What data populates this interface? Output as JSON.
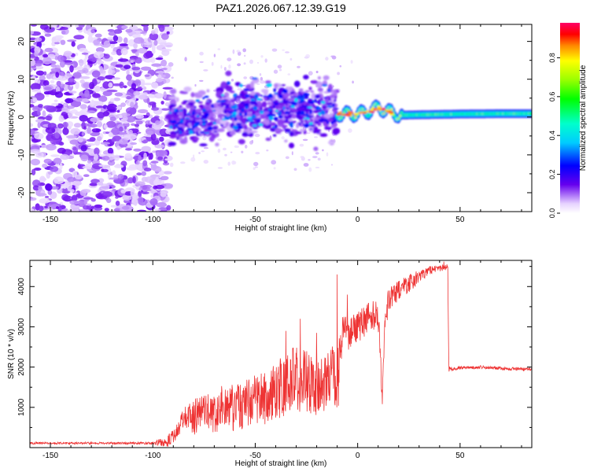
{
  "title": "PAZ1.2026.067.12.39.G19",
  "chart_data": [
    {
      "type": "heatmap",
      "xlabel": "Height of straight line (km)",
      "ylabel": "Frequency (Hz)",
      "xlim": [
        -160,
        85
      ],
      "ylim": [
        -25,
        24.5
      ],
      "x_ticks": [
        -150,
        -100,
        -50,
        0,
        50
      ],
      "x_tick_labels": [
        "-150",
        "-100",
        "-50",
        "0",
        "50"
      ],
      "y_ticks": [
        -20,
        -10,
        0,
        10,
        20
      ],
      "y_tick_labels": [
        "-20",
        "-10",
        "0",
        "10",
        "20"
      ],
      "colorbar": {
        "label": "Normalized spectral amplitude",
        "range": [
          0,
          0.98
        ],
        "ticks": [
          0.0,
          0.2,
          0.4,
          0.6,
          0.8
        ],
        "tick_labels": [
          "0.0",
          "0.2",
          "0.4",
          "0.6",
          "0.8"
        ]
      },
      "regions": [
        {
          "x_range": [
            -160,
            -92
          ],
          "freq_range": [
            -25,
            24.5
          ],
          "amplitude": [
            0.0,
            0.15
          ],
          "character": "diffuse noise"
        },
        {
          "x_range": [
            -92,
            -68
          ],
          "freq_range": [
            -7,
            6
          ],
          "amplitude": [
            0.1,
            0.35
          ]
        },
        {
          "x_range": [
            -68,
            -10
          ],
          "freq_range": [
            -6,
            10
          ],
          "amplitude": [
            0.1,
            0.4
          ]
        },
        {
          "x_range": [
            -10,
            20
          ],
          "freq_range": [
            -1,
            4
          ],
          "amplitude": [
            0.2,
            0.98
          ]
        },
        {
          "x_range": [
            20,
            85
          ],
          "freq_range": [
            0,
            2
          ],
          "amplitude": [
            0.3,
            0.75
          ]
        }
      ],
      "ridge": [
        [
          -10,
          0.8
        ],
        [
          0,
          0.8
        ],
        [
          5,
          1.5
        ],
        [
          10,
          2.5
        ],
        [
          15,
          1.5
        ],
        [
          20,
          0.5
        ],
        [
          30,
          0.6
        ],
        [
          50,
          0.8
        ],
        [
          70,
          0.9
        ],
        [
          85,
          0.9
        ]
      ]
    },
    {
      "type": "line",
      "xlabel": "Height of straight line (km)",
      "ylabel": "SNR (10 * v/v)",
      "xlim": [
        -160,
        85
      ],
      "ylim": [
        0,
        4650
      ],
      "x_ticks": [
        -150,
        -100,
        -50,
        0,
        50
      ],
      "x_tick_labels": [
        "-150",
        "-100",
        "-50",
        "0",
        "50"
      ],
      "y_ticks": [
        1000,
        2000,
        3000,
        4000
      ],
      "y_tick_labels": [
        "1000",
        "2000",
        "3000",
        "4000"
      ],
      "series": [
        {
          "name": "SNR",
          "color": "#ee3333",
          "x": [
            -160,
            -140,
            -120,
            -100,
            -92,
            -88,
            -85,
            -80,
            -75,
            -70,
            -65,
            -60,
            -55,
            -50,
            -45,
            -40,
            -35,
            -30,
            -25,
            -20,
            -15,
            -12,
            -10,
            -8,
            -5,
            0,
            5,
            10,
            12,
            13,
            15,
            20,
            25,
            30,
            35,
            40,
            43,
            44,
            44.5,
            50,
            60,
            70,
            80,
            85
          ],
          "values": [
            110,
            110,
            110,
            110,
            170,
            340,
            600,
            600,
            900,
            700,
            950,
            800,
            900,
            1000,
            1050,
            1200,
            1300,
            1400,
            1350,
            1300,
            1400,
            1500,
            1250,
            2400,
            2900,
            2950,
            3250,
            3300,
            1300,
            2800,
            3700,
            3900,
            4100,
            4250,
            4400,
            4450,
            4480,
            4500,
            1950,
            1980,
            2000,
            1970,
            1950,
            1960
          ],
          "noise": [
            25,
            25,
            25,
            30,
            180,
            220,
            400,
            500,
            500,
            600,
            600,
            650,
            650,
            700,
            750,
            800,
            900,
            1000,
            900,
            800,
            800,
            900,
            1100,
            700,
            500,
            400,
            400,
            400,
            300,
            300,
            300,
            250,
            250,
            150,
            100,
            80,
            60,
            60,
            60,
            40,
            40,
            40,
            40,
            40
          ],
          "spikes": [
            [
              -10,
              4300
            ],
            [
              -28,
              3200
            ],
            [
              -35,
              2900
            ],
            [
              -20,
              2850
            ],
            [
              12,
              1080
            ],
            [
              -5,
              3800
            ],
            [
              42,
              4620
            ]
          ]
        }
      ]
    }
  ]
}
